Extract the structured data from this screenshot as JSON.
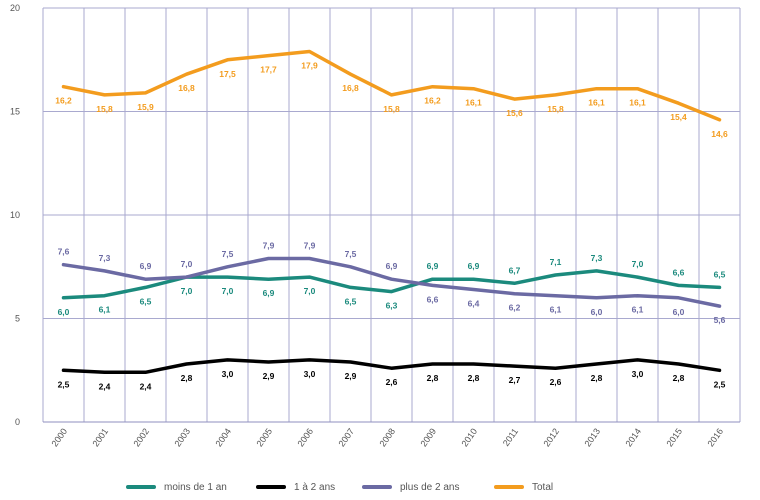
{
  "chart_data": {
    "type": "line",
    "title": "",
    "xlabel": "",
    "ylabel": "",
    "ylim": [
      0,
      20
    ],
    "yticks": [
      0,
      5,
      10,
      15,
      20
    ],
    "grid": true,
    "legend_position": "bottom",
    "categories": [
      "2000",
      "2001",
      "2002",
      "2003",
      "2004",
      "2005",
      "2006",
      "2007",
      "2008",
      "2009",
      "2010",
      "2011",
      "2012",
      "2013",
      "2014",
      "2015",
      "2016"
    ],
    "series": [
      {
        "name": "moins de 1 an",
        "color": "#1b8a7d",
        "values": [
          6.0,
          6.1,
          6.5,
          7.0,
          7.0,
          6.9,
          7.0,
          6.5,
          6.3,
          6.9,
          6.9,
          6.7,
          7.1,
          7.3,
          7.0,
          6.6,
          6.5
        ],
        "labels": [
          "6,0",
          "6,1",
          "6,5",
          "7,0",
          "7,0",
          "6,9",
          "7,0",
          "6,5",
          "6,3",
          "6,9",
          "6,9",
          "6,7",
          "7,1",
          "7,3",
          "7,0",
          "6,6",
          "6,5"
        ],
        "label_side": [
          "below",
          "below",
          "below",
          "below",
          "below",
          "below",
          "below",
          "below",
          "below",
          "above",
          "above",
          "above",
          "above",
          "above",
          "above",
          "above",
          "above"
        ]
      },
      {
        "name": "1 à 2 ans",
        "color": "#000000",
        "values": [
          2.5,
          2.4,
          2.4,
          2.8,
          3.0,
          2.9,
          3.0,
          2.9,
          2.6,
          2.8,
          2.8,
          2.7,
          2.6,
          2.8,
          3.0,
          2.8,
          2.5
        ],
        "labels": [
          "2,5",
          "2,4",
          "2,4",
          "2,8",
          "3,0",
          "2,9",
          "3,0",
          "2,9",
          "2,6",
          "2,8",
          "2,8",
          "2,7",
          "2,6",
          "2,8",
          "3,0",
          "2,8",
          "2,5"
        ],
        "label_side": [
          "below",
          "below",
          "below",
          "below",
          "below",
          "below",
          "below",
          "below",
          "below",
          "below",
          "below",
          "below",
          "below",
          "below",
          "below",
          "below",
          "below"
        ]
      },
      {
        "name": "plus de 2 ans",
        "color": "#6b6aa3",
        "values": [
          7.6,
          7.3,
          6.9,
          7.0,
          7.5,
          7.9,
          7.9,
          7.5,
          6.9,
          6.6,
          6.4,
          6.2,
          6.1,
          6.0,
          6.1,
          6.0,
          5.6
        ],
        "labels": [
          "7,6",
          "7,3",
          "6,9",
          "7,0",
          "7,5",
          "7,9",
          "7,9",
          "7,5",
          "6,9",
          "6,6",
          "6,4",
          "6,2",
          "6,1",
          "6,0",
          "6,1",
          "6,0",
          "5,6"
        ],
        "label_side": [
          "above",
          "above",
          "above",
          "above",
          "above",
          "above",
          "above",
          "above",
          "above",
          "below",
          "below",
          "below",
          "below",
          "below",
          "below",
          "below",
          "below"
        ]
      },
      {
        "name": "Total",
        "color": "#f39c1e",
        "values": [
          16.2,
          15.8,
          15.9,
          16.8,
          17.5,
          17.7,
          17.9,
          16.8,
          15.8,
          16.2,
          16.1,
          15.6,
          15.8,
          16.1,
          16.1,
          15.4,
          14.6
        ],
        "labels": [
          "16,2",
          "15,8",
          "15,9",
          "16,8",
          "17,5",
          "17,7",
          "17,9",
          "16,8",
          "15,8",
          "16,2",
          "16,1",
          "15,6",
          "15,8",
          "16,1",
          "16,1",
          "15,4",
          "14,6"
        ],
        "label_side": [
          "below",
          "below",
          "below",
          "below",
          "below",
          "below",
          "below",
          "below",
          "below",
          "below",
          "below",
          "below",
          "below",
          "below",
          "below",
          "below",
          "below"
        ]
      }
    ]
  }
}
